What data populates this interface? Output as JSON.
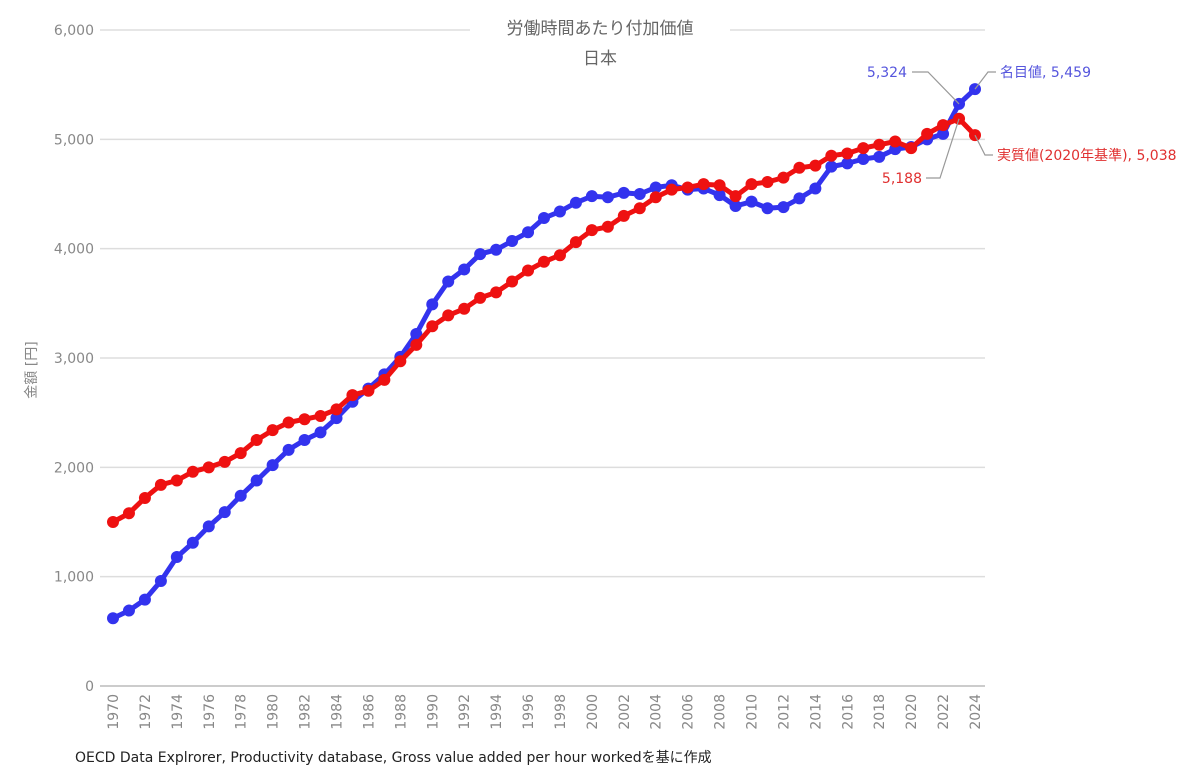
{
  "chart_data": {
    "type": "line",
    "title": "労働時間あたり付加価値",
    "subtitle": "日本",
    "ylabel": "金額 [円]",
    "xlabel": "",
    "source": "OECD Data Explrorer, Productivity database, Gross value added per hour workedを基に作成",
    "ylim": [
      0,
      6000
    ],
    "yticks": [
      0,
      1000,
      2000,
      3000,
      4000,
      5000,
      6000
    ],
    "ytick_labels": [
      "0",
      "1,000",
      "2,000",
      "3,000",
      "4,000",
      "5,000",
      "6,000"
    ],
    "xlim": [
      1970,
      2024
    ],
    "xtick_labels": [
      "1970",
      "1972",
      "1974",
      "1976",
      "1978",
      "1980",
      "1982",
      "1984",
      "1986",
      "1988",
      "1990",
      "1992",
      "1994",
      "1996",
      "1998",
      "2000",
      "2002",
      "2004",
      "2006",
      "2008",
      "2010",
      "2012",
      "2014",
      "2016",
      "2018",
      "2020",
      "2022",
      "2024"
    ],
    "grid": true,
    "x": [
      1970,
      1971,
      1972,
      1973,
      1974,
      1975,
      1976,
      1977,
      1978,
      1979,
      1980,
      1981,
      1982,
      1983,
      1984,
      1985,
      1986,
      1987,
      1988,
      1989,
      1990,
      1991,
      1992,
      1993,
      1994,
      1995,
      1996,
      1997,
      1998,
      1999,
      2000,
      2001,
      2002,
      2003,
      2004,
      2005,
      2006,
      2007,
      2008,
      2009,
      2010,
      2011,
      2012,
      2013,
      2014,
      2015,
      2016,
      2017,
      2018,
      2019,
      2020,
      2021,
      2022,
      2023,
      2024
    ],
    "series": [
      {
        "name": "名目値",
        "color": "#3333ee",
        "values": [
          620,
          690,
          790,
          960,
          1180,
          1310,
          1460,
          1590,
          1740,
          1880,
          2020,
          2160,
          2250,
          2320,
          2450,
          2600,
          2720,
          2850,
          3010,
          3220,
          3490,
          3700,
          3810,
          3950,
          3990,
          4070,
          4150,
          4280,
          4340,
          4420,
          4480,
          4470,
          4510,
          4500,
          4560,
          4580,
          4540,
          4550,
          4490,
          4390,
          4430,
          4370,
          4380,
          4460,
          4550,
          4750,
          4780,
          4820,
          4840,
          4910,
          4930,
          5000,
          5050,
          5324,
          5459
        ]
      },
      {
        "name": "実質値(2020年基準)",
        "color": "#ee1111",
        "values": [
          1500,
          1580,
          1720,
          1840,
          1880,
          1960,
          2000,
          2050,
          2130,
          2250,
          2340,
          2410,
          2440,
          2470,
          2530,
          2660,
          2700,
          2800,
          2970,
          3120,
          3290,
          3390,
          3450,
          3550,
          3600,
          3700,
          3800,
          3880,
          3940,
          4060,
          4170,
          4200,
          4300,
          4370,
          4470,
          4540,
          4560,
          4590,
          4580,
          4480,
          4590,
          4610,
          4650,
          4740,
          4760,
          4850,
          4870,
          4920,
          4950,
          4980,
          4920,
          5050,
          5130,
          5188,
          5038
        ]
      }
    ],
    "annotations": [
      {
        "text": "5,324",
        "series": "名目値",
        "x": 2023,
        "color": "#5555dd"
      },
      {
        "text": "名目値, 5,459",
        "series": "名目値",
        "x": 2024,
        "color": "#5555dd"
      },
      {
        "text": "5,188",
        "series": "実質値(2020年基準)",
        "x": 2023,
        "color": "#e03030"
      },
      {
        "text": "実質値(2020年基準), 5,038",
        "series": "実質値(2020年基準)",
        "x": 2024,
        "color": "#e03030"
      }
    ]
  }
}
